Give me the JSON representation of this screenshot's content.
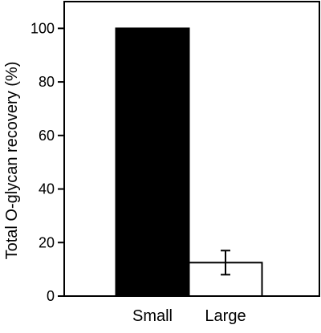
{
  "chart_data": {
    "type": "bar",
    "categories": [
      "Small",
      "Large"
    ],
    "values": [
      100,
      12.5
    ],
    "errors": [
      null,
      4.5
    ],
    "bar_colors": [
      "#000000",
      "#ffffff"
    ],
    "ylabel": "Total O-glycan recovery (%)",
    "xlabel": "",
    "ylim": [
      0,
      110
    ],
    "yticks": [
      0,
      20,
      40,
      60,
      80,
      100
    ],
    "grid": false,
    "legend": "none"
  }
}
